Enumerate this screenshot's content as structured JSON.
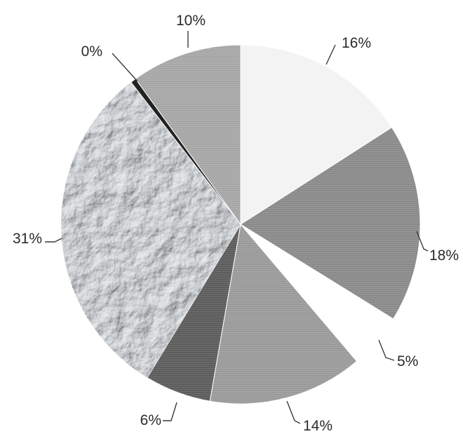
{
  "chart_data": {
    "type": "pie",
    "title": "",
    "start_angle_deg": 0,
    "direction": "clockwise",
    "legend": "none",
    "slices": [
      {
        "label": "16%",
        "value": 16,
        "color": "#f3f3f3",
        "texture": "none"
      },
      {
        "label": "18%",
        "value": 18,
        "color": "#8a8a8a",
        "texture": "hlines"
      },
      {
        "label": "5%",
        "value": 5,
        "color": "#ffffff",
        "texture": "none"
      },
      {
        "label": "14%",
        "value": 14,
        "color": "#9a9a9a",
        "texture": "hlines"
      },
      {
        "label": "6%",
        "value": 6,
        "color": "#5c5c5c",
        "texture": "hlines"
      },
      {
        "label": "31%",
        "value": 31,
        "color": "#b9c0c6",
        "texture": "crumpled"
      },
      {
        "label": "0%",
        "value": 0.5,
        "color": "#222222",
        "texture": "none"
      },
      {
        "label": "10%",
        "value": 10,
        "color": "#a6a6a6",
        "texture": "hlines"
      }
    ]
  }
}
